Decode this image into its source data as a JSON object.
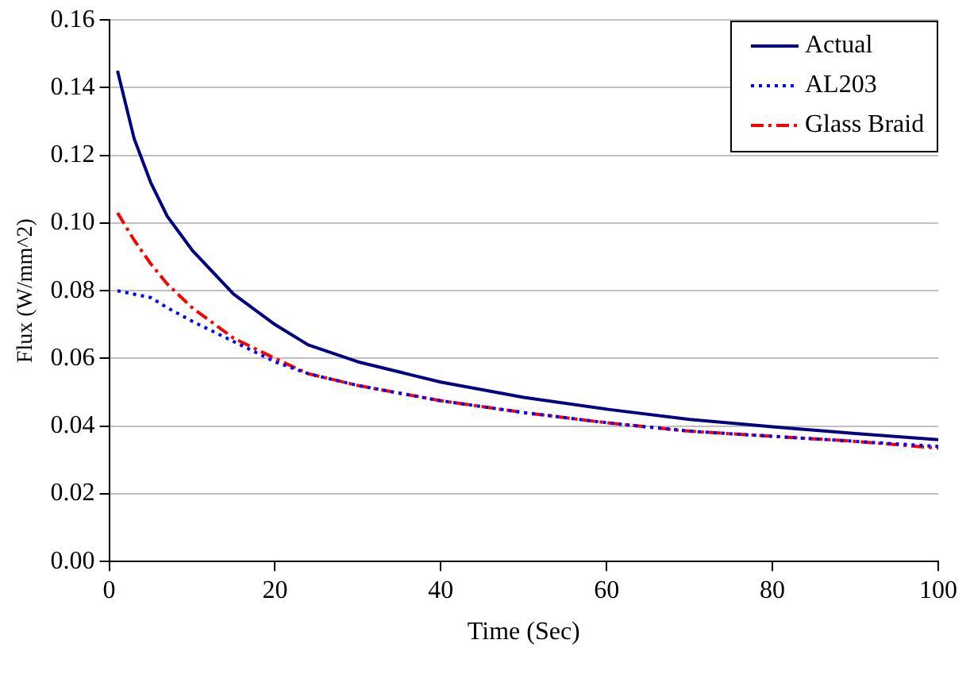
{
  "chart_data": {
    "type": "line",
    "xlabel": "Time (Sec)",
    "ylabel": "Flux (W/mm^2)",
    "xlim": [
      0,
      100
    ],
    "xticks": [
      0,
      20,
      40,
      60,
      80,
      100
    ],
    "ylim": [
      0,
      0.16
    ],
    "yticks": [
      {
        "value": 0,
        "label": "0.00"
      },
      {
        "value": 0.02,
        "label": "0.02"
      },
      {
        "value": 0.04,
        "label": "0.04"
      },
      {
        "value": 0.06,
        "label": "0.06"
      },
      {
        "value": 0.08,
        "label": "0.08"
      },
      {
        "value": 0.1,
        "label": "0.10"
      },
      {
        "value": 0.12,
        "label": "0.12"
      },
      {
        "value": 0.14,
        "label": "0.14"
      },
      {
        "value": 0.16,
        "label": "0.16"
      }
    ],
    "x": [
      1,
      3,
      5,
      7,
      10,
      15,
      20,
      24,
      30,
      40,
      50,
      60,
      70,
      80,
      90,
      100
    ],
    "series": [
      {
        "name": "Actual",
        "color": "#000080",
        "line_style": "solid",
        "values": [
          0.145,
          0.125,
          0.112,
          0.102,
          0.092,
          0.079,
          0.07,
          0.064,
          0.059,
          0.053,
          0.0485,
          0.045,
          0.042,
          0.0398,
          0.0378,
          0.036
        ]
      },
      {
        "name": "AL203",
        "color": "#0000ff",
        "line_style": "dotted",
        "values": [
          0.08,
          0.079,
          0.078,
          0.075,
          0.071,
          0.065,
          0.059,
          0.0555,
          0.052,
          0.0475,
          0.044,
          0.041,
          0.0385,
          0.037,
          0.0355,
          0.034
        ]
      },
      {
        "name": "Glass Braid",
        "color": "#ff0000",
        "line_style": "dashed",
        "values": [
          0.103,
          0.095,
          0.088,
          0.082,
          0.075,
          0.066,
          0.06,
          0.0555,
          0.052,
          0.0475,
          0.044,
          0.041,
          0.0385,
          0.037,
          0.0355,
          0.0335
        ]
      }
    ],
    "grid": "y",
    "legend": "top right",
    "marker": "none"
  }
}
